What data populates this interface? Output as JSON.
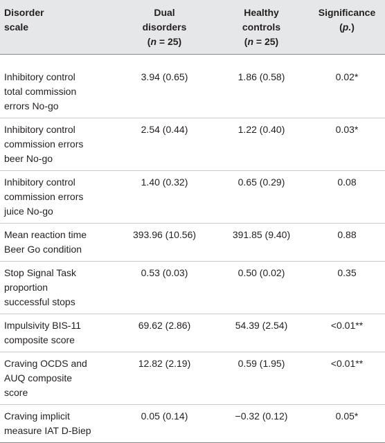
{
  "header": {
    "col1": [
      "Disorder",
      "scale"
    ],
    "col2": [
      "Dual",
      "disorders"
    ],
    "col2_n": "25",
    "col3": [
      "Healthy",
      "controls"
    ],
    "col3_n": "25",
    "col4": [
      "Significance"
    ],
    "col4_p": "p."
  },
  "rows": [
    {
      "label": [
        "Inhibitory control",
        "total commission",
        "errors No-go"
      ],
      "dual": "3.94 (0.65)",
      "healthy": "1.86 (0.58)",
      "significance": "0.02*"
    },
    {
      "label": [
        "Inhibitory control",
        "commission errors",
        "beer No-go"
      ],
      "dual": "2.54 (0.44)",
      "healthy": "1.22 (0.40)",
      "significance": "0.03*"
    },
    {
      "label": [
        "Inhibitory control",
        "commission errors",
        "juice No-go"
      ],
      "dual": "1.40 (0.32)",
      "healthy": "0.65 (0.29)",
      "significance": "0.08"
    },
    {
      "label": [
        "Mean reaction time",
        "Beer Go condition"
      ],
      "dual": "393.96 (10.56)",
      "healthy": "391.85 (9.40)",
      "significance": "0.88"
    },
    {
      "label": [
        "Stop Signal Task",
        "proportion",
        "successful stops"
      ],
      "dual": "0.53 (0.03)",
      "healthy": "0.50 (0.02)",
      "significance": "0.35"
    },
    {
      "label": [
        "Impulsivity BIS-11",
        "composite score"
      ],
      "dual": "69.62 (2.86)",
      "healthy": "54.39 (2.54)",
      "significance": "<0.01**"
    },
    {
      "label": [
        "Craving OCDS and",
        "AUQ composite",
        "score"
      ],
      "dual": "12.82 (2.19)",
      "healthy": "0.59 (1.95)",
      "significance": "<0.01**"
    },
    {
      "label": [
        "Craving implicit",
        "measure IAT D-Biep"
      ],
      "dual": "0.05 (0.14)",
      "healthy": "−0.32 (0.12)",
      "significance": "0.05*"
    }
  ],
  "colors": {
    "header_bg": "#e6e7e8",
    "text": "#231f20",
    "rule": "#c9c9c9"
  }
}
